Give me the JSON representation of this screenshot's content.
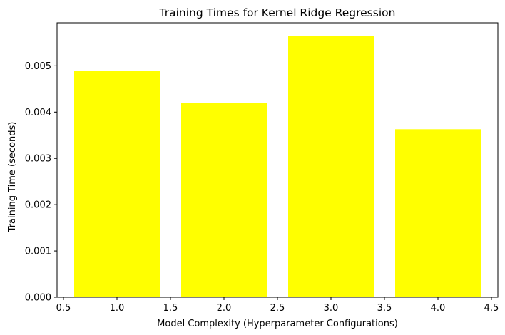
{
  "chart_data": {
    "type": "bar",
    "title": "Training Times for Kernel Ridge Regression",
    "xlabel": "Model Complexity (Hyperparameter Configurations)",
    "ylabel": "Training Time (seconds)",
    "x": [
      1,
      2,
      3,
      4
    ],
    "values": [
      0.00489,
      0.00419,
      0.00565,
      0.00363
    ],
    "bar_width": 0.8,
    "bar_color": "#ffff00",
    "xlim": [
      0.44,
      4.56
    ],
    "ylim": [
      0,
      0.00593
    ],
    "xticks": [
      0.5,
      1.0,
      1.5,
      2.0,
      2.5,
      3.0,
      3.5,
      4.0,
      4.5
    ],
    "xtick_labels": [
      "0.5",
      "1.0",
      "1.5",
      "2.0",
      "2.5",
      "3.0",
      "3.5",
      "4.0",
      "4.5"
    ],
    "yticks": [
      0,
      0.001,
      0.002,
      0.003,
      0.004,
      0.005
    ],
    "ytick_labels": [
      "0.000",
      "0.001",
      "0.002",
      "0.003",
      "0.004",
      "0.005"
    ],
    "grid": false,
    "legend": "none"
  }
}
